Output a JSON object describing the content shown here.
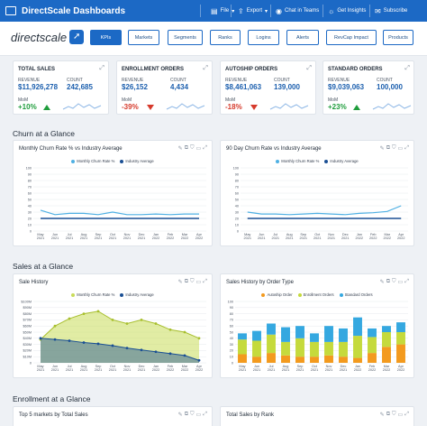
{
  "header": {
    "title": "DirectScale Dashboards",
    "menu": [
      {
        "icon": "file-icon",
        "glyph": "▤",
        "label": "File",
        "caret": "▾"
      },
      {
        "icon": "export-icon",
        "glyph": "⇪",
        "label": "Export",
        "caret": "▾"
      },
      {
        "icon": "teams-icon",
        "glyph": "◉",
        "label": "Chat in Teams",
        "caret": ""
      },
      {
        "icon": "insights-icon",
        "glyph": "☼",
        "label": "Get Insights",
        "caret": ""
      },
      {
        "icon": "subscribe-icon",
        "glyph": "✉",
        "label": "Subscribe",
        "caret": ""
      }
    ]
  },
  "nav": {
    "logo_text": "directscale",
    "tabs": [
      "KPIs",
      "Markets",
      "Segments",
      "Ranks",
      "Logins",
      "Alerts",
      "RevCap Impact",
      "Products"
    ],
    "active": "KPIs"
  },
  "kpis": [
    {
      "title": "TOTAL SALES",
      "rev_label": "REVENUE",
      "rev": "$11,926,278",
      "count_label": "COUNT",
      "count": "242,685",
      "mom_label": "MoM",
      "mom": "+10%",
      "dir": "up"
    },
    {
      "title": "ENROLLMENT ORDERS",
      "rev_label": "REVENUE",
      "rev": "$26,152",
      "count_label": "COUNT",
      "count": "4,434",
      "mom_label": "MoM",
      "mom": "-39%",
      "dir": "down"
    },
    {
      "title": "AUTOSHIP ORDERS",
      "rev_label": "REVENUE",
      "rev": "$8,461,063",
      "count_label": "COUNT",
      "count": "139,000",
      "mom_label": "MoM",
      "mom": "-18%",
      "dir": "down"
    },
    {
      "title": "STANDARD ORDERS",
      "rev_label": "REVENUE",
      "rev": "$9,039,063",
      "count_label": "COUNT",
      "count": "100,000",
      "mom_label": "MoM",
      "mom": "+23%",
      "dir": "up"
    }
  ],
  "sections": {
    "churn": "Churn at a Glance",
    "sales": "Sales at a Glance",
    "enrollment": "Enrollment at a Glance"
  },
  "colors": {
    "primary": "#1c69c5",
    "churn_light": "#4fb0e3",
    "industry": "#1a4f94",
    "lime": "#c9dc5a",
    "autoship": "#f39a1e",
    "enrollment": "#c5da3c",
    "standard": "#35a8e0",
    "up": "#1f9d3c",
    "down": "#d63a2c"
  },
  "x_months": [
    "May 2021",
    "Jun 2021",
    "Jul 2021",
    "Aug 2021",
    "Sep 2021",
    "Oct 2021",
    "Nov 2021",
    "Dec 2021",
    "Jan 2022",
    "Feb 2022",
    "Mar 2022",
    "Apr 2022"
  ],
  "chart_data": [
    {
      "type": "line",
      "title": "Monthly Churn Rate % vs Industry Average",
      "ylim": [
        0,
        100
      ],
      "yticks": [
        "100",
        "90",
        "80",
        "70",
        "60",
        "50",
        "40",
        "30",
        "20",
        "10",
        "0"
      ],
      "series": [
        {
          "name": "Monthly Churn Rate %",
          "values": [
            33,
            26,
            28,
            28,
            26,
            30,
            26,
            26,
            27,
            26,
            27,
            27
          ]
        },
        {
          "name": "Industry Average",
          "values": [
            20,
            20,
            20,
            20,
            20,
            20,
            20,
            20,
            20,
            20,
            20,
            20
          ]
        }
      ]
    },
    {
      "type": "line",
      "title": "90 Day Churn Rate vs Industry Average",
      "ylim": [
        0,
        100
      ],
      "yticks": [
        "100",
        "90",
        "80",
        "70",
        "60",
        "50",
        "40",
        "30",
        "20",
        "10",
        "0"
      ],
      "series": [
        {
          "name": "Monthly Churn Rate %",
          "values": [
            30,
            27,
            27,
            26,
            27,
            28,
            27,
            26,
            28,
            29,
            31,
            40
          ]
        },
        {
          "name": "Industry Average",
          "values": [
            20,
            20,
            20,
            20,
            20,
            20,
            20,
            20,
            20,
            20,
            20,
            20
          ]
        }
      ]
    },
    {
      "type": "area",
      "title": "Sale History",
      "ylim": [
        0,
        100
      ],
      "yticks": [
        "$100M",
        "$90M",
        "$80M",
        "$70M",
        "$60M",
        "$50M",
        "$40M",
        "$30M",
        "$20M",
        "$10M",
        "0"
      ],
      "series": [
        {
          "name": "Monthly Churn Rate %",
          "values": [
            38,
            60,
            72,
            80,
            84,
            70,
            64,
            70,
            64,
            54,
            50,
            40
          ]
        },
        {
          "name": "Industry Average",
          "values": [
            40,
            38,
            36,
            33,
            31,
            28,
            24,
            21,
            18,
            15,
            12,
            4
          ]
        }
      ]
    },
    {
      "type": "bar",
      "title": "Sales History by Order Type",
      "ylim": [
        0,
        100
      ],
      "yticks": [
        "100",
        "90",
        "80",
        "70",
        "60",
        "50",
        "40",
        "30",
        "20",
        "10",
        "0"
      ],
      "categories": [
        "May 2021",
        "Jun 2021",
        "Jul 2021",
        "Aug 2021",
        "Sep 2021",
        "Oct 2021",
        "Nov 2021",
        "Dec 2021",
        "Jan 2022",
        "Feb 2022",
        "Mar 2022",
        "Apr 2022"
      ],
      "series": [
        {
          "name": "Autoship Order",
          "values": [
            14,
            10,
            16,
            12,
            10,
            10,
            12,
            10,
            8,
            16,
            26,
            30
          ]
        },
        {
          "name": "Enrollment Orders",
          "values": [
            24,
            26,
            30,
            22,
            30,
            24,
            22,
            24,
            36,
            26,
            24,
            20
          ]
        },
        {
          "name": "Standard Orders",
          "values": [
            10,
            16,
            18,
            24,
            20,
            14,
            26,
            22,
            30,
            14,
            10,
            16
          ]
        }
      ]
    }
  ],
  "bottom": {
    "left_title": "Top 5 markets by Total Sales",
    "right_title": "Total Sales by Rank"
  }
}
